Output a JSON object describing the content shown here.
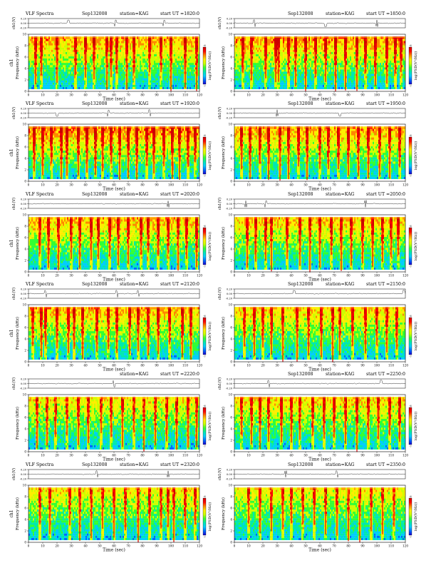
{
  "colors": {
    "spectrogram_scale": [
      "#1a00c8",
      "#0066ff",
      "#00ccff",
      "#00e8b0",
      "#33ff33",
      "#ccff00",
      "#ffee00",
      "#ff8800",
      "#ff0000",
      "#cc0000"
    ],
    "burst": "#e00000",
    "trace": "#000000"
  },
  "chart_data": [
    {
      "type": "heatmap",
      "panel": 1,
      "header": {
        "program": "VLF Spectra",
        "date": "Sep132008",
        "station": "station=KAG",
        "start": "start  UT  =1820:0"
      },
      "panel_ylabel": "ch1",
      "trace_ylabel": "ch1(V)",
      "trace_ticks": [
        "0.20",
        "0.00",
        "-0.20"
      ],
      "freq_label": "Frequency (kHz)",
      "freq_ticks": [
        "0",
        "2",
        "4",
        "6",
        "8",
        "10"
      ],
      "xlabel": "Time (sec)",
      "x_ticks": [
        "0",
        "10",
        "20",
        "30",
        "40",
        "50",
        "60",
        "70",
        "80",
        "90",
        "100",
        "110",
        "120"
      ],
      "xlim": [
        0,
        120
      ],
      "ylim": [
        0,
        10
      ],
      "colorbar_label": "log(PSD(V²/Hz))",
      "colorbar_ticks": [
        "-6",
        "-7"
      ],
      "density": 0.55,
      "bursts": [
        5,
        9,
        20,
        33,
        40,
        46,
        55,
        58,
        62,
        69,
        74,
        85,
        93,
        100,
        110,
        118
      ],
      "spikes": [
        28,
        61,
        95
      ]
    },
    {
      "type": "heatmap",
      "panel": 2,
      "header": {
        "program": "",
        "date": "Sep132008",
        "station": "station=KAG",
        "start": "start  UT  =1850:0"
      },
      "panel_ylabel": "",
      "trace_ylabel": "ch1(V)",
      "trace_ticks": [
        "0.20",
        "0.00",
        "-0.20"
      ],
      "freq_label": "Frequency (kHz)",
      "freq_ticks": [
        "0",
        "2",
        "4",
        "6",
        "8",
        "10"
      ],
      "xlabel": "Time (sec)",
      "x_ticks": [
        "0",
        "10",
        "20",
        "30",
        "40",
        "50",
        "60",
        "70",
        "80",
        "90",
        "100",
        "110",
        "120"
      ],
      "xlim": [
        0,
        120
      ],
      "ylim": [
        0,
        10
      ],
      "colorbar_label": "log(PSD(V²/Hz))",
      "colorbar_ticks": [
        "-6",
        "-7"
      ],
      "density": 0.6,
      "bursts": [
        6,
        12,
        22,
        29,
        31,
        38,
        43,
        50,
        57,
        64,
        71,
        78,
        86,
        92,
        99,
        107,
        113,
        117
      ],
      "spikes": [
        14,
        64,
        100
      ]
    },
    {
      "type": "heatmap",
      "panel": 3,
      "header": {
        "program": "VLF Spectra",
        "date": "Sep132008",
        "station": "station=KAG",
        "start": "start  UT  =1920:0"
      },
      "panel_ylabel": "ch1",
      "trace_ylabel": "ch1(V)",
      "trace_ticks": [
        "0.20",
        "0.00",
        "-0.20"
      ],
      "freq_label": "Frequency (kHz)",
      "freq_ticks": [
        "0",
        "2",
        "4",
        "6",
        "8",
        "10"
      ],
      "xlabel": "Time (sec)",
      "x_ticks": [
        "0",
        "10",
        "20",
        "30",
        "40",
        "50",
        "60",
        "70",
        "80",
        "90",
        "100",
        "110",
        "120"
      ],
      "xlim": [
        0,
        120
      ],
      "ylim": [
        0,
        10
      ],
      "colorbar_label": "log(PSD(V²/Hz))",
      "colorbar_ticks": [
        "-6",
        "-7"
      ],
      "density": 0.65,
      "bursts": [
        4,
        10,
        16,
        23,
        27,
        35,
        41,
        47,
        52,
        58,
        64,
        70,
        76,
        83,
        88,
        95,
        101,
        106,
        112,
        117
      ],
      "spikes": [
        20,
        56,
        85
      ]
    },
    {
      "type": "heatmap",
      "panel": 4,
      "header": {
        "program": "",
        "date": "Sep132008",
        "station": "station=KAG",
        "start": "start  UT  =1950:0"
      },
      "panel_ylabel": "",
      "trace_ylabel": "ch1(V)",
      "trace_ticks": [
        "0.20",
        "0.00",
        "-0.20"
      ],
      "freq_label": "Frequency (kHz)",
      "freq_ticks": [
        "0",
        "2",
        "4",
        "6",
        "8",
        "10"
      ],
      "xlabel": "Time (sec)",
      "x_ticks": [
        "0",
        "10",
        "20",
        "30",
        "40",
        "50",
        "60",
        "70",
        "80",
        "90",
        "100",
        "110",
        "120"
      ],
      "xlim": [
        0,
        120
      ],
      "ylim": [
        0,
        10
      ],
      "colorbar_label": "log(PSD(V²/Hz))",
      "colorbar_ticks": [
        "-6",
        "-7"
      ],
      "density": 0.55,
      "bursts": [
        5,
        11,
        18,
        24,
        32,
        38,
        45,
        51,
        60,
        66,
        73,
        80,
        87,
        94,
        102,
        109,
        116
      ],
      "spikes": [
        30,
        74
      ]
    },
    {
      "type": "heatmap",
      "panel": 5,
      "header": {
        "program": "VLF Spectra",
        "date": "Sep132008",
        "station": "station=KAG",
        "start": "start  UT  =2020:0"
      },
      "panel_ylabel": "ch1",
      "trace_ylabel": "ch1(V)",
      "trace_ticks": [
        "0.20",
        "0.00",
        "-0.20"
      ],
      "freq_label": "Frequency (kHz)",
      "freq_ticks": [
        "0",
        "2",
        "4",
        "6",
        "8",
        "10"
      ],
      "xlabel": "Time (sec)",
      "x_ticks": [
        "0",
        "10",
        "20",
        "30",
        "40",
        "50",
        "60",
        "70",
        "80",
        "90",
        "100",
        "110",
        "120"
      ],
      "xlim": [
        0,
        120
      ],
      "ylim": [
        0,
        10
      ],
      "colorbar_label": "log(PSD(V²/Hz))",
      "colorbar_ticks": [
        "-6",
        "-7"
      ],
      "density": 0.5,
      "bursts": [
        8,
        14,
        21,
        30,
        36,
        44,
        49,
        57,
        63,
        70,
        79,
        84,
        91,
        98,
        105,
        111,
        118
      ],
      "spikes": [
        98
      ]
    },
    {
      "type": "heatmap",
      "panel": 6,
      "header": {
        "program": "",
        "date": "Sep132008",
        "station": "station=KAG",
        "start": "start  UT  =2050:0"
      },
      "panel_ylabel": "",
      "trace_ylabel": "ch1(V)",
      "trace_ticks": [
        "0.20",
        "0.00",
        "-0.20"
      ],
      "freq_label": "Frequency (kHz)",
      "freq_ticks": [
        "0",
        "2",
        "4",
        "6",
        "8",
        "10"
      ],
      "xlabel": "Time (sec)",
      "x_ticks": [
        "0",
        "10",
        "20",
        "30",
        "40",
        "50",
        "60",
        "70",
        "80",
        "90",
        "100",
        "110",
        "120"
      ],
      "xlim": [
        0,
        120
      ],
      "ylim": [
        0,
        10
      ],
      "colorbar_label": "log(PSD(V²/Hz))",
      "colorbar_ticks": [
        "-6",
        "-7"
      ],
      "density": 0.45,
      "bursts": [
        9,
        15,
        22,
        26,
        37,
        46,
        53,
        60,
        68,
        75,
        82,
        90,
        97,
        104,
        110,
        115
      ],
      "spikes": [
        8,
        22,
        92
      ]
    },
    {
      "type": "heatmap",
      "panel": 7,
      "header": {
        "program": "VLF Spectra",
        "date": "Sep132008",
        "station": "station=KAG",
        "start": "start  UT  =2120:0"
      },
      "panel_ylabel": "ch1",
      "trace_ylabel": "ch1(V)",
      "trace_ticks": [
        "0.20",
        "0.00",
        "-0.20"
      ],
      "freq_label": "Frequency (kHz)",
      "freq_ticks": [
        "0",
        "2",
        "4",
        "6",
        "8",
        "10"
      ],
      "xlabel": "Time (sec)",
      "x_ticks": [
        "0",
        "10",
        "20",
        "30",
        "40",
        "50",
        "60",
        "70",
        "80",
        "90",
        "100",
        "110",
        "120"
      ],
      "xlim": [
        0,
        120
      ],
      "ylim": [
        0,
        10
      ],
      "colorbar_label": "log(PSD(V²/Hz))",
      "colorbar_ticks": [
        "-6",
        "-7"
      ],
      "density": 0.5,
      "bursts": [
        3,
        9,
        12,
        20,
        28,
        32,
        38,
        48,
        56,
        62,
        71,
        77,
        84,
        91,
        99,
        108,
        114
      ],
      "spikes": [
        12,
        62,
        77
      ]
    },
    {
      "type": "heatmap",
      "panel": 8,
      "header": {
        "program": "",
        "date": "Sep132008",
        "station": "station=KAG",
        "start": "start  UT  =2150:0"
      },
      "panel_ylabel": "",
      "trace_ylabel": "ch1(V)",
      "trace_ticks": [
        "0.20",
        "0.00",
        "-0.20"
      ],
      "freq_label": "Frequency (kHz)",
      "freq_ticks": [
        "0",
        "2",
        "4",
        "6",
        "8",
        "10"
      ],
      "xlabel": "Time (sec)",
      "x_ticks": [
        "0",
        "10",
        "20",
        "30",
        "40",
        "50",
        "60",
        "70",
        "80",
        "90",
        "100",
        "110",
        "120"
      ],
      "xlim": [
        0,
        120
      ],
      "ylim": [
        0,
        10
      ],
      "colorbar_label": "log(PSD(V²/Hz))",
      "colorbar_ticks": [
        "-6",
        "-7"
      ],
      "density": 0.4,
      "bursts": [
        7,
        14,
        20,
        26,
        34,
        44,
        52,
        61,
        69,
        74,
        83,
        92,
        100,
        107,
        114
      ],
      "spikes": [
        42,
        119
      ]
    },
    {
      "type": "heatmap",
      "panel": 9,
      "header": {
        "program": "",
        "date": "",
        "station": "station=KAG",
        "start": "start  UT  =2220:0"
      },
      "panel_ylabel": "",
      "trace_ylabel": "ch1(V)",
      "trace_ticks": [
        "0.20",
        "0.00",
        "-0.20"
      ],
      "freq_label": "Frequency (kHz)",
      "freq_ticks": [
        "0",
        "2",
        "4",
        "6",
        "8",
        "10"
      ],
      "xlabel": "Time (sec)",
      "x_ticks": [
        "0",
        "10",
        "20",
        "30",
        "40",
        "50",
        "60",
        "70",
        "80",
        "90",
        "100",
        "110",
        "120"
      ],
      "xlim": [
        0,
        120
      ],
      "ylim": [
        0,
        10
      ],
      "colorbar_label": "log(PSD(V²/Hz))",
      "colorbar_ticks": [
        "-6",
        "-7"
      ],
      "density": 0.3,
      "bursts": [
        6,
        13,
        19,
        27,
        35,
        42,
        51,
        58,
        66,
        74,
        81,
        89,
        97,
        104,
        112,
        118
      ],
      "spikes": [
        60
      ]
    },
    {
      "type": "heatmap",
      "panel": 10,
      "header": {
        "program": "",
        "date": "Sep132008",
        "station": "station=KAG",
        "start": "start  UT  =2250:0"
      },
      "panel_ylabel": "",
      "trace_ylabel": "ch1(V)",
      "trace_ticks": [
        "0.20",
        "0.00",
        "-0.20"
      ],
      "freq_label": "Frequency (kHz)",
      "freq_ticks": [
        "0",
        "2",
        "4",
        "6",
        "8",
        "10"
      ],
      "xlabel": "Time (sec)",
      "x_ticks": [
        "0",
        "10",
        "20",
        "30",
        "40",
        "50",
        "60",
        "70",
        "80",
        "90",
        "100",
        "110",
        "120"
      ],
      "xlim": [
        0,
        120
      ],
      "ylim": [
        0,
        10
      ],
      "colorbar_label": "log(PSD(V²/Hz))",
      "colorbar_ticks": [
        "-6",
        "-7"
      ],
      "density": 0.4,
      "bursts": [
        5,
        12,
        18,
        24,
        33,
        40,
        46,
        55,
        63,
        70,
        78,
        86,
        94,
        101,
        109,
        116
      ],
      "spikes": [
        24,
        103
      ]
    },
    {
      "type": "heatmap",
      "panel": 11,
      "header": {
        "program": "VLF Spectra",
        "date": "Sep132008",
        "station": "station=KAG",
        "start": "start  UT  =2320:0"
      },
      "panel_ylabel": "ch1",
      "trace_ylabel": "ch1(V)",
      "trace_ticks": [
        "0.20",
        "0.00",
        "-0.20"
      ],
      "freq_label": "Frequency (kHz)",
      "freq_ticks": [
        "0",
        "2",
        "4",
        "6",
        "8",
        "10"
      ],
      "xlabel": "Time (sec)",
      "x_ticks": [
        "0",
        "10",
        "20",
        "30",
        "40",
        "50",
        "60",
        "70",
        "80",
        "90",
        "100",
        "110",
        "120"
      ],
      "xlim": [
        0,
        120
      ],
      "ylim": [
        0,
        10
      ],
      "colorbar_label": "log(PSD(V²/Hz))",
      "colorbar_ticks": [
        "-6",
        "-7"
      ],
      "density": 0.3,
      "bursts": [
        8,
        15,
        29,
        36,
        44,
        52,
        60,
        68,
        77,
        85,
        93,
        98,
        102,
        110,
        117
      ],
      "spikes": [
        48,
        98
      ]
    },
    {
      "type": "heatmap",
      "panel": 12,
      "header": {
        "program": "",
        "date": "Sep132008",
        "station": "station=KAG",
        "start": "start  UT  =2350:0"
      },
      "panel_ylabel": "",
      "trace_ylabel": "ch1(V)",
      "trace_ticks": [
        "0.20",
        "0.00",
        "-0.20"
      ],
      "freq_label": "Frequency (kHz)",
      "freq_ticks": [
        "0",
        "2",
        "4",
        "6",
        "8",
        "10"
      ],
      "xlabel": "Time (sec)",
      "x_ticks": [
        "0",
        "10",
        "20",
        "30",
        "40",
        "50",
        "60",
        "70",
        "80",
        "90",
        "100",
        "110",
        "120"
      ],
      "xlim": [
        0,
        120
      ],
      "ylim": [
        0,
        10
      ],
      "colorbar_label": "log(PSD(V²/Hz))",
      "colorbar_ticks": [
        "-6",
        "-7"
      ],
      "density": 0.25,
      "bursts": [
        10,
        18,
        26,
        34,
        40,
        48,
        56,
        64,
        72,
        80,
        88,
        96,
        104,
        112
      ],
      "spikes": [
        36,
        72
      ]
    }
  ]
}
